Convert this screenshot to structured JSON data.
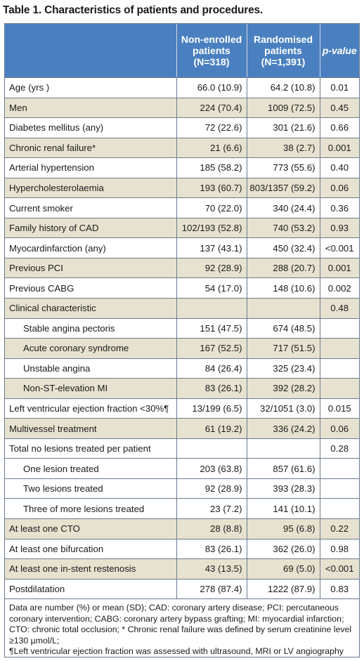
{
  "title": "Table 1. Characteristics of patients and procedures.",
  "columns": {
    "c1": [
      "Non-enrolled",
      "patients",
      "(N=318)"
    ],
    "c2": [
      "Randomised",
      "patients",
      "(N=1,391)"
    ],
    "c3": "p-value"
  },
  "rows": [
    {
      "label": "Age (yrs )",
      "a": "66.0 (10.9)",
      "b": "64.2 (10.8)",
      "p": "0.01"
    },
    {
      "label": "Men",
      "a": "224 (70.4)",
      "b": "1009 (72.5)",
      "p": "0.45"
    },
    {
      "label": "Diabetes mellitus (any)",
      "a": "72 (22.6)",
      "b": "301 (21.6)",
      "p": "0.66"
    },
    {
      "label": "Chronic renal failure*",
      "a": "21 (6.6)",
      "b": "38 (2.7)",
      "p": "0.001"
    },
    {
      "label": "Arterial hypertension",
      "a": "185 (58.2)",
      "b": "773 (55.6)",
      "p": "0.40"
    },
    {
      "label": "Hypercholesterolaemia",
      "a": "193 (60.7)",
      "b": "803/1357 (59.2)",
      "p": "0.06"
    },
    {
      "label": "Current smoker",
      "a": "70 (22.0)",
      "b": "340 (24.4)",
      "p": "0.36"
    },
    {
      "label": "Family history of CAD",
      "a": "102/193 (52.8)",
      "b": "740 (53.2)",
      "p": "0.93"
    },
    {
      "label": "Myocardinfarction (any)",
      "a": "137 (43.1)",
      "b": "450 (32.4)",
      "p": "<0.001"
    },
    {
      "label": "Previous PCI",
      "a": "92 (28.9)",
      "b": "288 (20.7)",
      "p": "0.001"
    },
    {
      "label": "Previous CABG",
      "a": "54 (17.0)",
      "b": "148 (10.6)",
      "p": "0.002"
    },
    {
      "label": "Clinical characteristic",
      "a": "",
      "b": "",
      "p": "0.48"
    },
    {
      "label": "Stable angina pectoris",
      "a": "151 (47.5)",
      "b": "674 (48.5)",
      "p": ""
    },
    {
      "label": "Acute coronary syndrome",
      "a": "167 (52.5)",
      "b": "717 (51.5)",
      "p": ""
    },
    {
      "label": "Unstable angina",
      "a": "84 (26.4)",
      "b": "325 (23.4)",
      "p": ""
    },
    {
      "label": "Non-ST-elevation MI",
      "a": "83 (26.1)",
      "b": "392 (28.2)",
      "p": ""
    },
    {
      "label": "Left ventricular ejection fraction <30%¶",
      "a": "13/199 (6.5)",
      "b": "32/1051 (3.0)",
      "p": "0.015"
    },
    {
      "label": "Multivessel treatment",
      "a": "61 (19.2)",
      "b": "336 (24.2)",
      "p": "0.06"
    },
    {
      "label": "Total no lesions treated per patient",
      "a": "",
      "b": "",
      "p": "0.28"
    },
    {
      "label": "One lesion treated",
      "a": "203 (63.8)",
      "b": "857 (61.6)",
      "p": ""
    },
    {
      "label": "Two lesions treated",
      "a": "92 (28.9)",
      "b": "393 (28.3)",
      "p": ""
    },
    {
      "label": "Three of more lesions treated",
      "a": "23 (7.2)",
      "b": "141 (10.1)",
      "p": ""
    },
    {
      "label": "At least one CTO",
      "a": "28 (8.8)",
      "b": "95 (6.8)",
      "p": "0.22"
    },
    {
      "label": "At least one bifurcation",
      "a": "83 (26.1)",
      "b": "362 (26.0)",
      "p": "0.98"
    },
    {
      "label": "At least one in-stent restenosis",
      "a": "43 (13.5)",
      "b": "69 (5.0)",
      "p": "<0.001"
    },
    {
      "label": "Postdilatation",
      "a": "278 (87.4)",
      "b": "1222 (87.9)",
      "p": "0.83"
    }
  ],
  "footnote": [
    "Data are number (%) or mean (SD); CAD: coronary artery disease; PCI: percutaneous coronary intervention; CABG: coronary artery bypass grafting; MI: myocardial infarction; CTO: chronic total occlusion; * Chronic renal failure was defined by serum creatinine level ≥130 µmol/L;",
    "¶Left ventricular ejection fraction was assessed with ultrasound, MRI or LV angiography"
  ],
  "colors": {
    "header_bg": "#4a80c0",
    "shade_bg": "#e7e2cf",
    "border": "#6b7a8f"
  }
}
